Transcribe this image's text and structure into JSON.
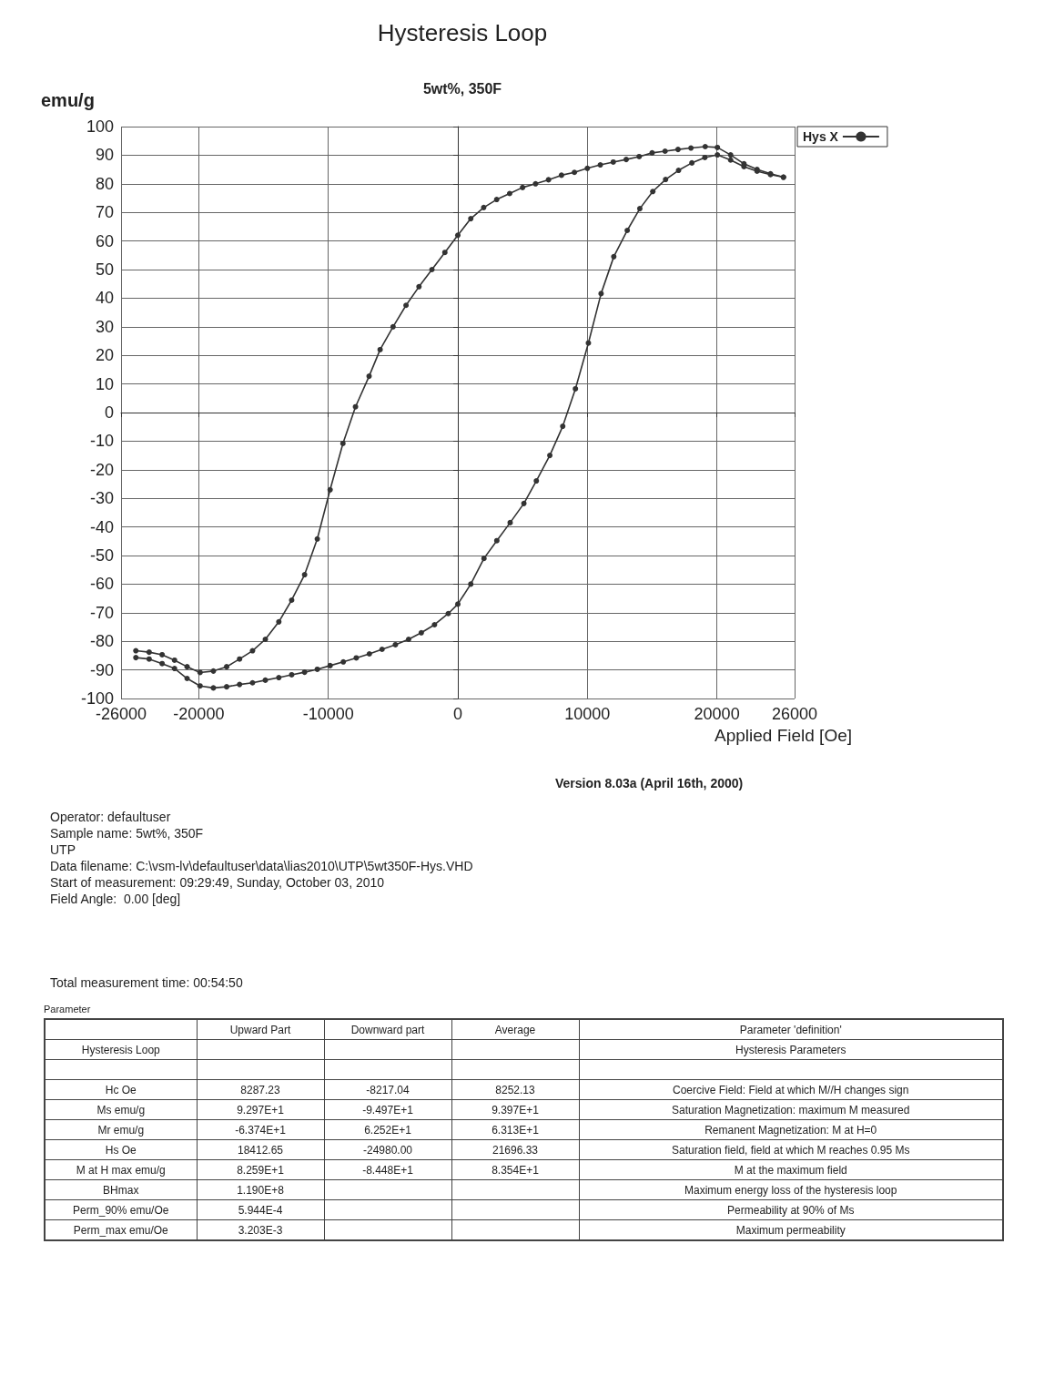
{
  "chart_data": [
    {
      "type": "line",
      "title": "Hysteresis Loop",
      "subtitle": "5wt%, 350F",
      "xlabel": "Applied Field [Oe]",
      "ylabel": "emu/g",
      "xlim": [
        -26000,
        26000
      ],
      "xticks": [
        -26000,
        -20000,
        -10000,
        0,
        10000,
        20000,
        26000
      ],
      "ylim": [
        -100,
        100
      ],
      "yticks": [
        -100,
        -90,
        -80,
        -70,
        -60,
        -50,
        -40,
        -30,
        -20,
        -10,
        0,
        10,
        20,
        30,
        40,
        50,
        60,
        70,
        80,
        90,
        100
      ],
      "grid": true,
      "legend": "top right",
      "marker": "circle",
      "line_style": "solid",
      "series": [
        {
          "name": "Hys X",
          "color": "#333333",
          "x": [
            -24860,
            -23830,
            -22830,
            -21870,
            -20900,
            -19900,
            -18870,
            -17850,
            -16850,
            -15850,
            -14860,
            -13820,
            -12830,
            -11830,
            -10850,
            -9860,
            -8870,
            -7900,
            -6850,
            -6000,
            -5000,
            -4000,
            -3000,
            -2000,
            -1000,
            0,
            1000,
            2000,
            3000,
            4000,
            5000,
            6000,
            7000,
            8000,
            9000,
            10000,
            11000,
            12000,
            13000,
            14000,
            15000,
            16000,
            17000,
            18000,
            19100,
            20040,
            21060,
            22090,
            23100,
            24140,
            25140
          ],
          "values": [
            -83.3,
            -83.8,
            -84.7,
            -86.6,
            -88.9,
            -90.9,
            -90.4,
            -88.9,
            -86.2,
            -83.3,
            -79.3,
            -73.2,
            -65.6,
            -56.7,
            -44.2,
            -27,
            -10.8,
            2,
            12.7,
            22,
            30,
            37.5,
            44,
            50,
            56,
            62,
            67.8,
            71.7,
            74.5,
            76.6,
            78.7,
            80,
            81.4,
            83,
            84,
            85.4,
            86.6,
            87.6,
            88.5,
            89.5,
            90.8,
            91.4,
            92,
            92.5,
            93,
            92.7,
            90.1,
            87,
            85,
            83.5,
            82.3
          ]
        },
        {
          "color": "#333333",
          "x": [
            -24860,
            -23830,
            -22830,
            -21870,
            -20900,
            -19900,
            -18870,
            -17850,
            -16850,
            -15850,
            -14860,
            -13820,
            -12830,
            -11830,
            -10850,
            -9860,
            -8840,
            -7840,
            -6830,
            -5850,
            -4820,
            -3800,
            -2820,
            -1800,
            -740,
            0,
            1000,
            2020,
            3010,
            4040,
            5100,
            6060,
            7100,
            8100,
            9080,
            10080,
            11060,
            12040,
            13080,
            14050,
            15050,
            16040,
            17040,
            18070,
            19070,
            20040,
            21060,
            22090,
            23100,
            24140,
            25140
          ],
          "values": [
            -85.7,
            -86.2,
            -87.8,
            -89.5,
            -93,
            -95.6,
            -96.3,
            -95.9,
            -95.1,
            -94.5,
            -93.6,
            -92.7,
            -91.7,
            -90.8,
            -89.8,
            -88.5,
            -87.2,
            -85.8,
            -84.4,
            -82.8,
            -81.2,
            -79.3,
            -77,
            -74.2,
            -70.3,
            -67,
            -60,
            -51,
            -44.8,
            -38.5,
            -31.8,
            -23.9,
            -15,
            -4.8,
            8.3,
            24.3,
            41.6,
            54.5,
            63.7,
            71.3,
            77.3,
            81.5,
            84.7,
            87.3,
            89.2,
            90.1,
            88.3,
            86,
            84.4,
            83.2,
            82.3
          ]
        }
      ],
      "annotations": [
        "Version 8.03a (April 16th, 2000)",
        "Operator: defaultuser",
        "Sample name: 5wt%, 350F",
        "UTP",
        "Data filename: C:\\vsm-lv\\defaultuser\\data\\lias2010\\UTP\\5wt350F-Hys.VHD",
        "Start of measurement: 09:29:49, Sunday, October 03, 2010",
        "Field Angle:  0.00 [deg]",
        "Total measurement time: 00:54:50"
      ]
    },
    {
      "type": "other",
      "title": "Parameter",
      "categories": [
        "Upward Part",
        "Downward part",
        "Average",
        "Parameter 'definition'"
      ],
      "y_categories": [
        "Hysteresis Loop",
        "Hc Oe",
        "Ms  emu/g",
        "Mr emu/g",
        "Hs Oe",
        "M at H max emu/g",
        "BHmax",
        "Perm_90% emu/Oe",
        "Perm_max emu/Oe"
      ],
      "cell_labels": [
        [
          null,
          null,
          null,
          "Hysteresis Parameters"
        ],
        [
          "8287.23",
          "-8217.04",
          "8252.13",
          "Coercive Field: Field at which M//H changes sign"
        ],
        [
          "9.297E+1",
          "-9.497E+1",
          "9.397E+1",
          "Saturation Magnetization: maximum M measured"
        ],
        [
          "-6.374E+1",
          "6.252E+1",
          "6.313E+1",
          "Remanent Magnetization: M at H=0"
        ],
        [
          "18412.65",
          "-24980.00",
          "21696.33",
          "Saturation field, field at which M reaches 0.95 Ms"
        ],
        [
          "8.259E+1",
          "-8.448E+1",
          "8.354E+1",
          "M at the maximum field"
        ],
        [
          "1.190E+8",
          null,
          null,
          "Maximum energy loss of the hysteresis loop"
        ],
        [
          "5.944E-4",
          null,
          null,
          "Permeability at 90% of Ms"
        ],
        [
          "3.203E-3",
          null,
          null,
          "Maximum permeability"
        ]
      ]
    }
  ]
}
